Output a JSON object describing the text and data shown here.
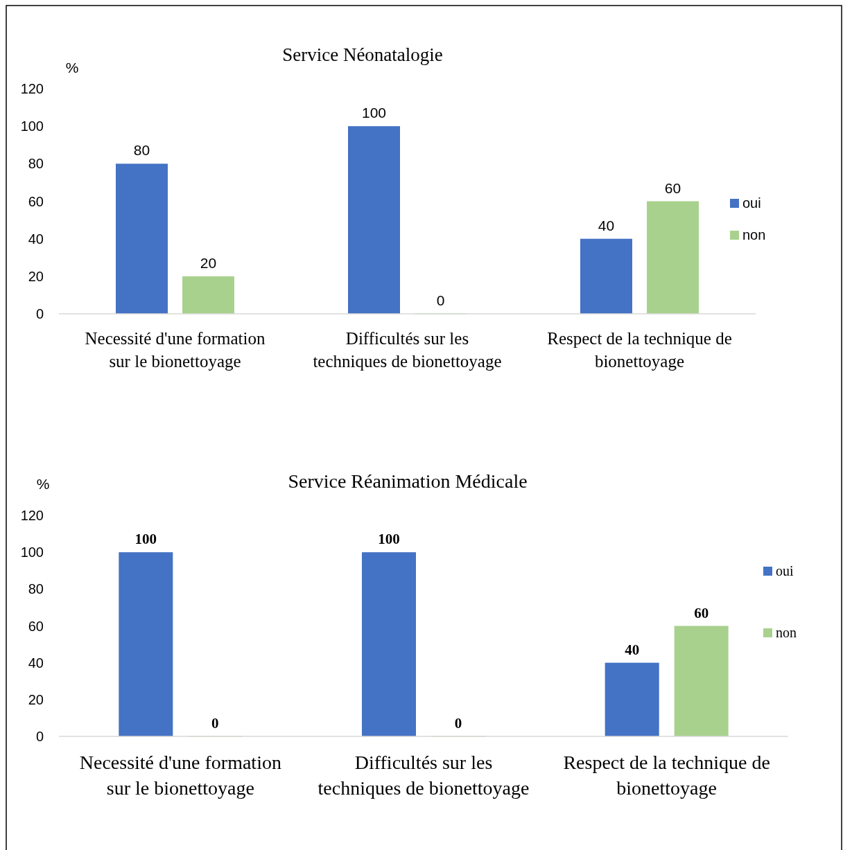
{
  "chart_data": [
    {
      "type": "bar",
      "title": "Service Néonatalogie",
      "ylabel": "%",
      "categories": [
        "Necessité d'une formation sur le bionettoyage",
        "Difficultés sur les techniques de bionettoyage",
        "Respect de la technique de bionettoyage"
      ],
      "series": [
        {
          "name": "oui",
          "color": "#4472c4",
          "values": [
            80,
            100,
            40
          ]
        },
        {
          "name": "non",
          "color": "#a9d18e",
          "values": [
            20,
            0,
            60
          ]
        }
      ],
      "ylim": [
        0,
        120
      ],
      "yticks": [
        0,
        20,
        40,
        60,
        80,
        100,
        120
      ],
      "data_labels": true,
      "legend": "right",
      "grid": false
    },
    {
      "type": "bar",
      "title": "Service Réanimation Médicale",
      "ylabel": "%",
      "categories": [
        "Necessité d'une formation sur le bionettoyage",
        "Difficultés sur les techniques de bionettoyage",
        "Respect de la technique de bionettoyage"
      ],
      "series": [
        {
          "name": "oui",
          "color": "#4472c4",
          "values": [
            100,
            100,
            40
          ]
        },
        {
          "name": "non",
          "color": "#a9d18e",
          "values": [
            0,
            0,
            60
          ]
        }
      ],
      "ylim": [
        0,
        120
      ],
      "yticks": [
        0,
        20,
        40,
        60,
        80,
        100,
        120
      ],
      "data_labels": true,
      "legend": "right",
      "grid": false
    }
  ]
}
